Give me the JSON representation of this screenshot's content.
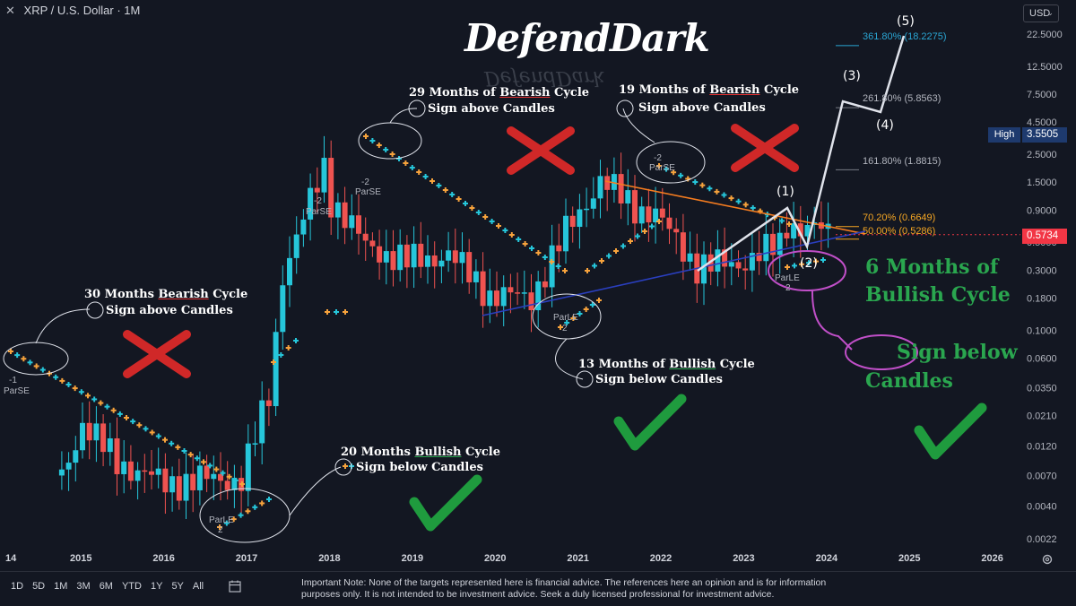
{
  "header": {
    "close_symbol": "✕",
    "title": "XRP / U.S. Dollar · 1M"
  },
  "currency": {
    "label": "USD",
    "chevron": "⌄"
  },
  "logo": {
    "text": "DefendDark"
  },
  "price_axis": {
    "ticks": [
      "22.5000",
      "12.5000",
      "7.5000",
      "4.5000",
      "2.5000",
      "1.5000",
      "0.9000",
      "0.5000",
      "0.3000",
      "0.1800",
      "0.1000",
      "0.0600",
      "0.0350",
      "0.0210",
      "0.0120",
      "0.0070",
      "0.0040",
      "0.0022"
    ],
    "high_label": "High",
    "high_value": "3.5505",
    "last_price": "0.5734"
  },
  "time_axis": {
    "ticks": [
      "14",
      "2015",
      "2016",
      "2017",
      "2018",
      "2019",
      "2020",
      "2021",
      "2022",
      "2023",
      "2024",
      "2025",
      "2026"
    ]
  },
  "fib_levels": {
    "l1": "361.80% (18.2275)",
    "l2": "261.80% (5.8563)",
    "l3": "161.80% (1.8815)",
    "l4": "70.20% (0.6649)",
    "l5": "50.00% (0.5286)"
  },
  "waves": {
    "w1": "(1)",
    "w2": "(2)",
    "w3": "(3)",
    "w4": "(4)",
    "w5": "(5)"
  },
  "annotations": {
    "a1_title_pre": "30 Months ",
    "a1_title_mid": "Bearish",
    "a1_title_post": " Cycle",
    "a1_sub": "Sign above Candles",
    "a2_title_pre": "29 Months of ",
    "a2_title_mid": "Bearish",
    "a2_title_post": " Cycle",
    "a2_sub": "Sign above Candles",
    "a3_title_pre": "19 Months of ",
    "a3_title_mid": "Bearish",
    "a3_title_post": " Cycle",
    "a3_sub": "Sign above Candles",
    "a4_title_pre": "20 Months ",
    "a4_title_mid": "Bullish",
    "a4_title_post": " Cycle",
    "a4_sub": "Sign below Candles",
    "a5_title_pre": "13 Months of ",
    "a5_title_mid": "Bullish",
    "a5_title_post": " Cycle",
    "a5_sub": "Sign below Candles",
    "big1_line1": "6 Months of",
    "big1_line2": "Bullish Cycle",
    "big2_line1": "Sign below",
    "big2_line2": "Candles"
  },
  "indicator_labels": {
    "parse_1_num": "-1",
    "parse_1": "ParSE",
    "parse_2_num": "-2",
    "parse_2": "ParSE",
    "parse_3_num": "-2",
    "parse_3": "ParSE",
    "parse_4_num": "-2",
    "parse_4": "ParSE",
    "parle_1": "ParLE",
    "parle_1_num": "2",
    "parle_2": "ParLE",
    "parle_2_num": "2",
    "parle_3": "ParLE",
    "parle_3_num": "2"
  },
  "range_buttons": [
    "1D",
    "5D",
    "1M",
    "3M",
    "6M",
    "YTD",
    "1Y",
    "5Y",
    "All"
  ],
  "disclaimer": "Important Note: None of the targets represented here is financial advice. The references here an opinion and is for information purposes only. It is not intended to be investment advice. Seek a duly licensed professional for investment advice.",
  "colors": {
    "bg": "#131722",
    "up": "#26c6da",
    "down": "#ef5350",
    "parse_dots": "#f7a33c",
    "trend_upper": "#f57c1f",
    "trend_lower": "#2a3fbf",
    "check": "#1f9b3e",
    "cross": "#d02828",
    "circle": "#c04fc8"
  },
  "chart_data": {
    "type": "candlestick",
    "symbol": "XRP / U.S. Dollar",
    "interval": "1M",
    "scale": "log",
    "x_range": [
      "2014-09",
      "2026-06"
    ],
    "y_range": [
      0.0022,
      22.5
    ],
    "monthly_close_approx": [
      {
        "date": "2014-10",
        "close": 0.007
      },
      {
        "date": "2015-01",
        "close": 0.018
      },
      {
        "date": "2015-06",
        "close": 0.009
      },
      {
        "date": "2016-01",
        "close": 0.006
      },
      {
        "date": "2016-06",
        "close": 0.0065
      },
      {
        "date": "2016-12",
        "close": 0.0065
      },
      {
        "date": "2017-04",
        "close": 0.03
      },
      {
        "date": "2017-06",
        "close": 0.28
      },
      {
        "date": "2017-12",
        "close": 2.0
      },
      {
        "date": "2018-01",
        "close": 1.1
      },
      {
        "date": "2018-06",
        "close": 0.47
      },
      {
        "date": "2018-12",
        "close": 0.35
      },
      {
        "date": "2019-06",
        "close": 0.4
      },
      {
        "date": "2019-12",
        "close": 0.19
      },
      {
        "date": "2020-06",
        "close": 0.18
      },
      {
        "date": "2020-11",
        "close": 0.6
      },
      {
        "date": "2021-04",
        "close": 1.55
      },
      {
        "date": "2021-09",
        "close": 0.95
      },
      {
        "date": "2021-12",
        "close": 0.83
      },
      {
        "date": "2022-06",
        "close": 0.32
      },
      {
        "date": "2022-12",
        "close": 0.34
      },
      {
        "date": "2023-06",
        "close": 0.47
      },
      {
        "date": "2023-07",
        "close": 0.7
      },
      {
        "date": "2023-12",
        "close": 0.62
      },
      {
        "date": "2024-01",
        "close": 0.5734
      }
    ],
    "fib_levels": [
      {
        "label": "361.80%",
        "value": 18.2275
      },
      {
        "label": "261.80%",
        "value": 5.8563
      },
      {
        "label": "161.80%",
        "value": 1.8815
      },
      {
        "label": "70.20%",
        "value": 0.6649
      },
      {
        "label": "50.00%",
        "value": 0.5286
      }
    ],
    "high": 3.5505,
    "last": 0.5734
  }
}
